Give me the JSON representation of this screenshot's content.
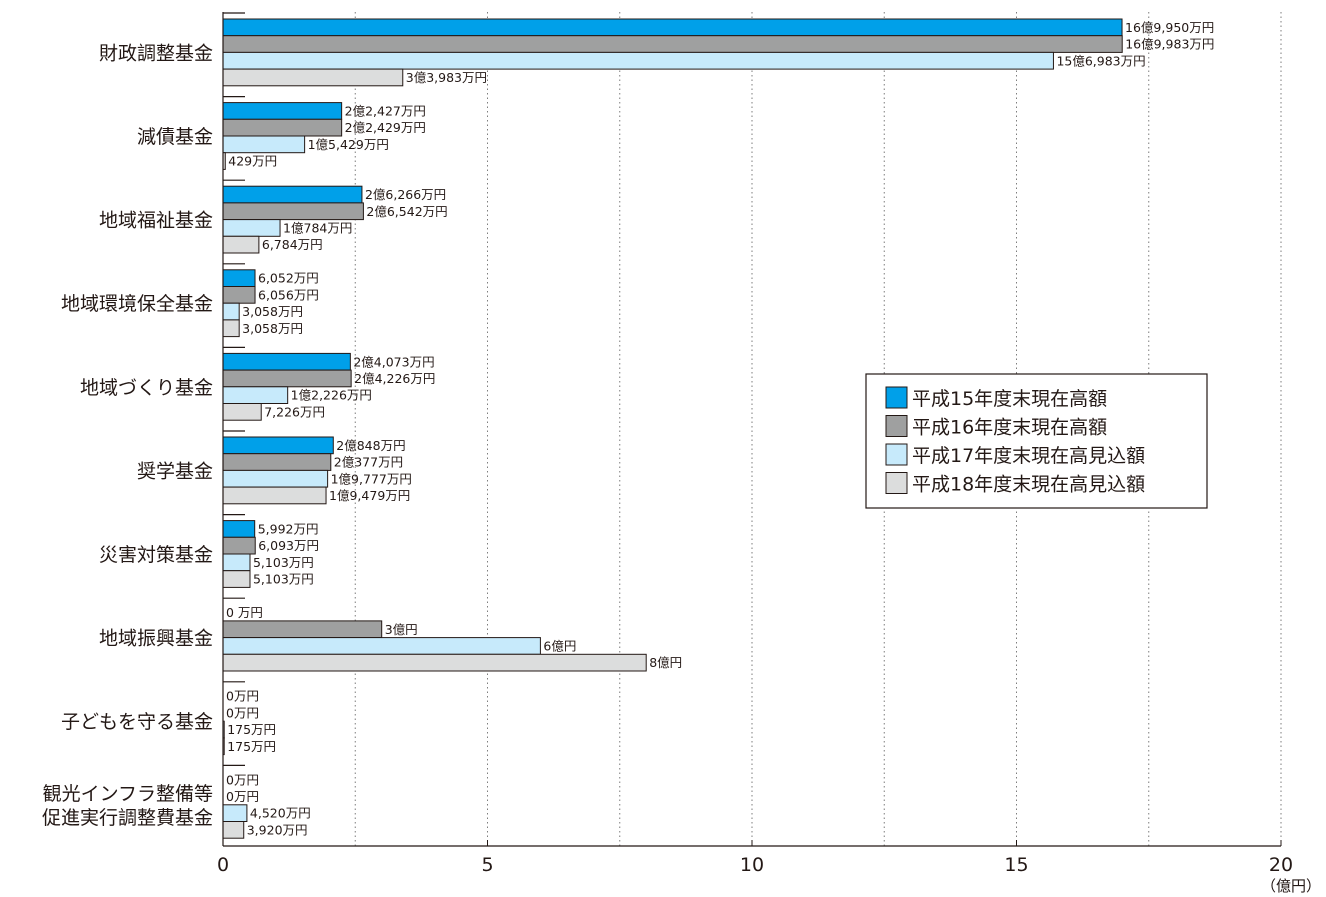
{
  "chart_data": {
    "type": "bar",
    "orientation": "horizontal",
    "categories": [
      [
        "財政調整基金"
      ],
      [
        "減債基金"
      ],
      [
        "地域福祉基金"
      ],
      [
        "地域環境保全基金"
      ],
      [
        "地域づくり基金"
      ],
      [
        "奨学基金"
      ],
      [
        "災害対策基金"
      ],
      [
        "地域振興基金"
      ],
      [
        "子どもを守る基金"
      ],
      [
        "観光インフラ整備等",
        "促進実行調整費基金"
      ]
    ],
    "series": [
      {
        "name": "平成15年度末現在高額",
        "color": "#00a0e9",
        "values": [
          16.995,
          2.2427,
          2.6266,
          0.6052,
          2.4073,
          2.0848,
          0.5992,
          0,
          0,
          0
        ],
        "labels": [
          "16億9,950万円",
          "2億2,427万円",
          "2億6,266万円",
          "6,052万円",
          "2億4,073万円",
          "2億848万円",
          "5,992万円",
          "0 万円",
          "0万円",
          "0万円"
        ]
      },
      {
        "name": "平成16年度末現在高額",
        "color": "#9fa0a0",
        "values": [
          16.9983,
          2.2429,
          2.6542,
          0.6056,
          2.4226,
          2.0377,
          0.6093,
          3,
          0,
          0
        ],
        "labels": [
          "16億9,983万円",
          "2億2,429万円",
          "2億6,542万円",
          "6,056万円",
          "2億4,226万円",
          "2億377万円",
          "6,093万円",
          "3億円",
          "0万円",
          "0万円"
        ]
      },
      {
        "name": "平成17年度末現在高見込額",
        "color": "#c7eafb",
        "values": [
          15.6983,
          1.5429,
          1.0784,
          0.3058,
          1.2226,
          1.9777,
          0.5103,
          6,
          0.0175,
          0.452
        ],
        "labels": [
          "15億6,983万円",
          "1億5,429万円",
          "1億784万円",
          "3,058万円",
          "1億2,226万円",
          "1億9,777万円",
          "5,103万円",
          "6億円",
          "175万円",
          "4,520万円"
        ]
      },
      {
        "name": "平成18年度末現在高見込額",
        "color": "#dcdddd",
        "values": [
          3.3983,
          0.0429,
          0.6784,
          0.3058,
          0.7226,
          1.9479,
          0.5103,
          8,
          0.0175,
          0.392
        ],
        "labels": [
          "3億3,983万円",
          "429万円",
          "6,784万円",
          "3,058万円",
          "7,226万円",
          "1億9,479万円",
          "5,103万円",
          "8億円",
          "175万円",
          "3,920万円"
        ]
      }
    ],
    "xlim": [
      0,
      20
    ],
    "xticks": [
      0,
      5,
      10,
      15,
      20
    ],
    "minor_gridlines": [
      2.5,
      5,
      7.5,
      10,
      12.5,
      15,
      17.5,
      20
    ],
    "grid": "vertical dotted",
    "unit_label": "（億円）",
    "legend_position": "right-middle",
    "colors": {
      "bar_stroke": "#231815",
      "grid": "#7d7d7d",
      "text": "#231815"
    }
  }
}
